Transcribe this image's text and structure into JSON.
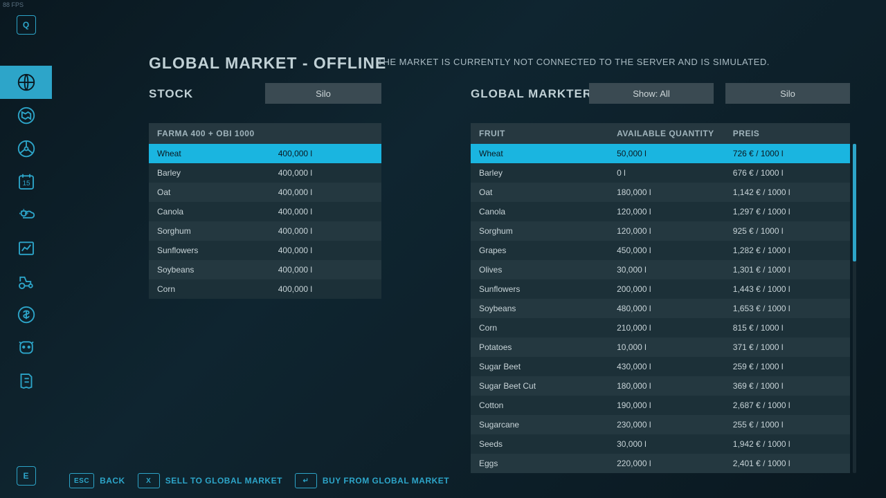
{
  "fps": "88 FPS",
  "topKey": "Q",
  "bottomKey": "E",
  "title": "GLOBAL MARKET - OFFLINE",
  "subtitle": "THE MARKET IS CURRENTLY NOT CONNECTED TO THE SERVER AND IS SIMULATED.",
  "stockLabel": "STOCK",
  "marketLabel": "GLOBAL MARKTER",
  "siloBtn": "Silo",
  "showBtn": "Show: All",
  "silo2Btn": "Silo",
  "stockHeader": "FARMA 400 + OBI 1000",
  "stockRows": [
    {
      "name": "Wheat",
      "qty": "400,000 l",
      "selected": true
    },
    {
      "name": "Barley",
      "qty": "400,000 l"
    },
    {
      "name": "Oat",
      "qty": "400,000 l"
    },
    {
      "name": "Canola",
      "qty": "400,000 l"
    },
    {
      "name": "Sorghum",
      "qty": "400,000 l"
    },
    {
      "name": "Sunflowers",
      "qty": "400,000 l"
    },
    {
      "name": "Soybeans",
      "qty": "400,000 l"
    },
    {
      "name": "Corn",
      "qty": "400,000 l"
    }
  ],
  "marketHeaders": {
    "fruit": "FRUIT",
    "qty": "AVAILABLE QUANTITY",
    "price": "PREIS"
  },
  "marketRows": [
    {
      "name": "Wheat",
      "qty": "50,000 l",
      "price": "726 € / 1000 l",
      "selected": true
    },
    {
      "name": "Barley",
      "qty": "0 l",
      "price": "676 € / 1000 l"
    },
    {
      "name": "Oat",
      "qty": "180,000 l",
      "price": "1,142 € / 1000 l"
    },
    {
      "name": "Canola",
      "qty": "120,000 l",
      "price": "1,297 € / 1000 l"
    },
    {
      "name": "Sorghum",
      "qty": "120,000 l",
      "price": "925 € / 1000 l"
    },
    {
      "name": "Grapes",
      "qty": "450,000 l",
      "price": "1,282 € / 1000 l"
    },
    {
      "name": "Olives",
      "qty": "30,000 l",
      "price": "1,301 € / 1000 l"
    },
    {
      "name": "Sunflowers",
      "qty": "200,000 l",
      "price": "1,443 € / 1000 l"
    },
    {
      "name": "Soybeans",
      "qty": "480,000 l",
      "price": "1,653 € / 1000 l"
    },
    {
      "name": "Corn",
      "qty": "210,000 l",
      "price": "815 € / 1000 l"
    },
    {
      "name": "Potatoes",
      "qty": "10,000 l",
      "price": "371 € / 1000 l"
    },
    {
      "name": "Sugar Beet",
      "qty": "430,000 l",
      "price": "259 € / 1000 l"
    },
    {
      "name": "Sugar Beet Cut",
      "qty": "180,000 l",
      "price": "369 € / 1000 l"
    },
    {
      "name": "Cotton",
      "qty": "190,000 l",
      "price": "2,687 € / 1000 l"
    },
    {
      "name": "Sugarcane",
      "qty": "230,000 l",
      "price": "255 € / 1000 l"
    },
    {
      "name": "Seeds",
      "qty": "30,000 l",
      "price": "1,942 € / 1000 l"
    },
    {
      "name": "Eggs",
      "qty": "220,000 l",
      "price": "2,401 € / 1000 l"
    }
  ],
  "hints": {
    "back": {
      "key": "ESC",
      "label": "BACK"
    },
    "sell": {
      "key": "X",
      "label": "SELL TO GLOBAL MARKET"
    },
    "buy": {
      "key": "↵",
      "label": "BUY FROM GLOBAL MARKET"
    }
  }
}
